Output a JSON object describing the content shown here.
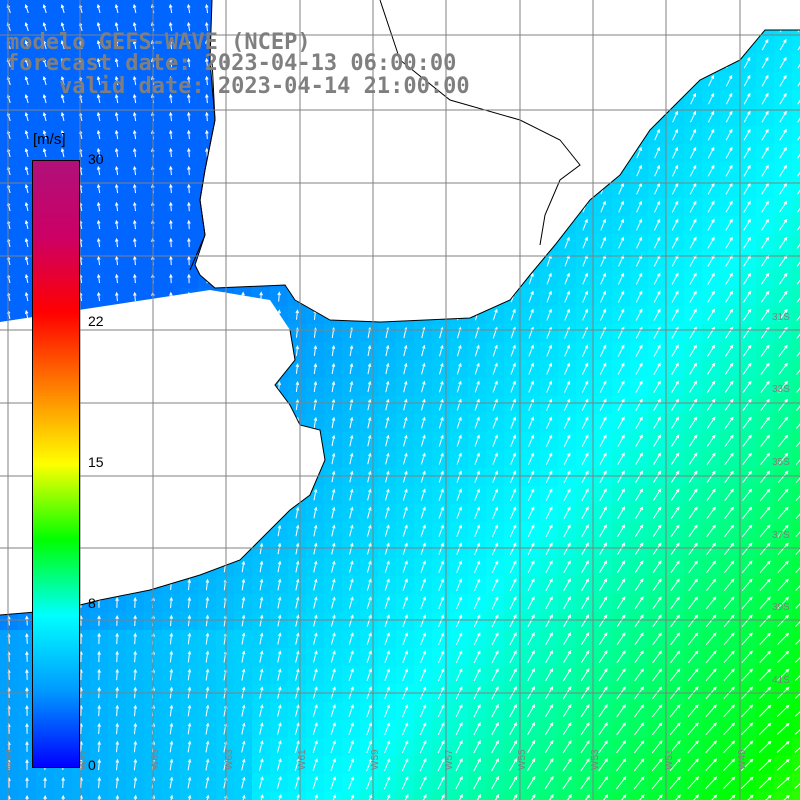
{
  "title": {
    "line1": "modelo GEFS-WAVE (NCEP)",
    "line2": "forecast date: 2023-04-13 06:00:00",
    "line3": "    valid date: 2023-04-14 21:00:00"
  },
  "colorbar": {
    "unit": "[m/s]",
    "min": 0,
    "max": 30,
    "ticks": [
      {
        "value": 30,
        "label": "30"
      },
      {
        "value": 22,
        "label": "22"
      },
      {
        "value": 15,
        "label": "15"
      },
      {
        "value": 8,
        "label": "8"
      },
      {
        "value": 0,
        "label": "0"
      }
    ],
    "colors": [
      "#0000ff",
      "#0099ff",
      "#00ffff",
      "#00ff00",
      "#ffff00",
      "#ff8000",
      "#ff0000",
      "#cc0066",
      "#b0107a"
    ]
  },
  "map": {
    "projection": "lat-lon grid",
    "land_color": "#ffffff",
    "coastline_color": "#000000",
    "grid_color": "#808080",
    "lat_labels": [
      "31S",
      "33S",
      "35S",
      "37S",
      "39S",
      "41S"
    ],
    "lon_labels": [
      "W69",
      "W67",
      "W65",
      "W63",
      "W61",
      "W59",
      "W57",
      "W55",
      "W53",
      "W51",
      "W49"
    ],
    "wind_field": {
      "description_units": "m/s",
      "nw_ocean_speed": 4,
      "se_ocean_speed": 12,
      "south_speed": 10
    }
  }
}
